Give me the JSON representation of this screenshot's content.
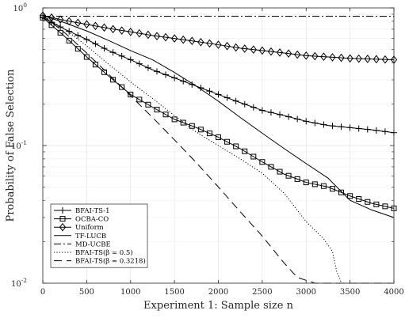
{
  "chart_data": {
    "type": "line",
    "xlabel": "Experiment 1: Sample size n",
    "ylabel": "Probability of False Selection",
    "xlim": [
      0,
      4000
    ],
    "ylim": [
      0.01,
      1
    ],
    "yscale": "log",
    "grid": true,
    "legend_position": "bottom-left",
    "x_ticks": [
      0,
      500,
      1000,
      1500,
      2000,
      2500,
      3000,
      3500,
      4000
    ],
    "x_tick_labels": [
      "0",
      "500",
      "1000",
      "1500",
      "2000",
      "2500",
      "3000",
      "3500",
      "4000"
    ],
    "y_ticks": [
      0.01,
      0.1,
      1
    ],
    "y_tick_labels": [
      {
        "base": "10",
        "exp": "-2"
      },
      {
        "base": "10",
        "exp": "-1"
      },
      {
        "base": "10",
        "exp": "0"
      }
    ],
    "series": [
      {
        "name": "BFAI-TS-1",
        "style": "solid",
        "marker": "plus",
        "x": [
          0,
          250,
          500,
          750,
          1000,
          1250,
          1500,
          1750,
          2000,
          2250,
          2500,
          2750,
          3000,
          3250,
          3500,
          3750,
          4000
        ],
        "y": [
          0.85,
          0.7,
          0.59,
          0.49,
          0.42,
          0.355,
          0.31,
          0.27,
          0.235,
          0.205,
          0.18,
          0.165,
          0.15,
          0.14,
          0.135,
          0.13,
          0.124
        ]
      },
      {
        "name": "OCBA-CO",
        "style": "solid",
        "marker": "square",
        "x": [
          0,
          250,
          500,
          750,
          1000,
          1250,
          1500,
          1750,
          2000,
          2250,
          2500,
          2750,
          3000,
          3250,
          3500,
          3750,
          4000
        ],
        "y": [
          0.85,
          0.62,
          0.44,
          0.32,
          0.235,
          0.19,
          0.155,
          0.135,
          0.115,
          0.095,
          0.076,
          0.062,
          0.054,
          0.05,
          0.043,
          0.038,
          0.035
        ]
      },
      {
        "name": "Uniform",
        "style": "solid",
        "marker": "diamond",
        "x": [
          0,
          250,
          500,
          750,
          1000,
          1250,
          1500,
          1750,
          2000,
          2250,
          2500,
          2750,
          3000,
          3250,
          3500,
          3750,
          4000
        ],
        "y": [
          0.88,
          0.81,
          0.76,
          0.71,
          0.67,
          0.63,
          0.6,
          0.57,
          0.54,
          0.51,
          0.49,
          0.47,
          0.45,
          0.44,
          0.43,
          0.425,
          0.42
        ]
      },
      {
        "name": "TF-LUCB",
        "style": "solid",
        "marker": "none",
        "x": [
          0,
          250,
          500,
          750,
          1000,
          1250,
          1500,
          1750,
          2000,
          2250,
          2500,
          2750,
          3000,
          3250,
          3500,
          3750,
          4000
        ],
        "y": [
          0.88,
          0.78,
          0.68,
          0.58,
          0.49,
          0.42,
          0.34,
          0.27,
          0.21,
          0.16,
          0.123,
          0.095,
          0.074,
          0.058,
          0.04,
          0.034,
          0.03
        ]
      },
      {
        "name": "MD-UCBE",
        "style": "dashdot",
        "marker": "none",
        "x": [
          0,
          500,
          1000,
          1500,
          2000,
          2500,
          3000,
          3500,
          4000
        ],
        "y": [
          0.87,
          0.87,
          0.87,
          0.87,
          0.87,
          0.87,
          0.87,
          0.87,
          0.87
        ]
      },
      {
        "name": "BFAI-TS(β = 0.5)",
        "style": "dotted",
        "marker": "none",
        "x": [
          0,
          250,
          500,
          750,
          1000,
          1250,
          1500,
          1750,
          2000,
          2250,
          2500,
          2750,
          3000,
          3200,
          3300,
          3350,
          3380,
          3400,
          3500,
          4000
        ],
        "y": [
          0.88,
          0.7,
          0.53,
          0.39,
          0.29,
          0.22,
          0.165,
          0.125,
          0.1,
          0.08,
          0.063,
          0.045,
          0.028,
          0.021,
          0.017,
          0.012,
          0.011,
          0.01,
          0.01,
          0.01
        ]
      },
      {
        "name": "BFAI-TS(β = 0.3218)",
        "style": "dashed",
        "marker": "none",
        "x": [
          0,
          250,
          500,
          750,
          1000,
          1250,
          1500,
          1750,
          2000,
          2250,
          2500,
          2750,
          2900,
          3000,
          3100,
          4000
        ],
        "y": [
          0.88,
          0.66,
          0.47,
          0.33,
          0.23,
          0.16,
          0.11,
          0.075,
          0.05,
          0.033,
          0.022,
          0.014,
          0.011,
          0.0105,
          0.01,
          0.01
        ]
      }
    ]
  }
}
